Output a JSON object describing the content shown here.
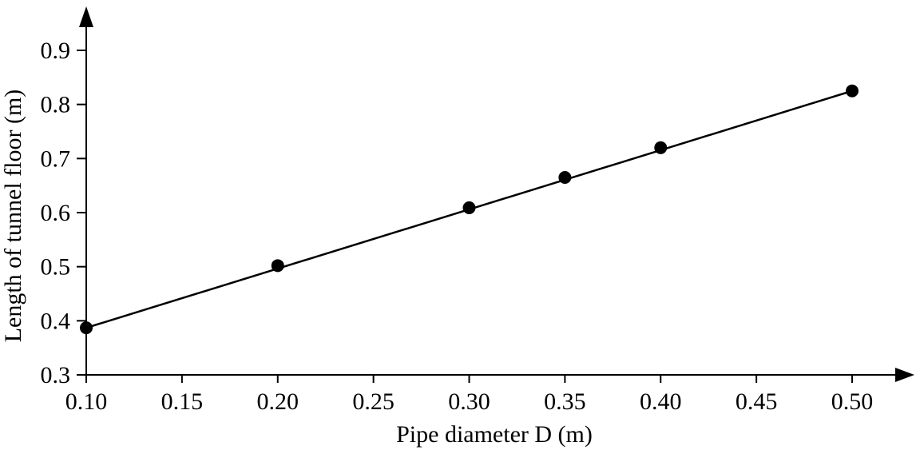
{
  "chart_data": {
    "type": "scatter",
    "xlabel": "Pipe diameter D (m)",
    "ylabel": "Length of tunnel floor (m)",
    "xlim": [
      0.1,
      0.5
    ],
    "ylim": [
      0.3,
      0.9
    ],
    "x_ticks": [
      "0.10",
      "0.15",
      "0.20",
      "0.25",
      "0.30",
      "0.35",
      "0.40",
      "0.45",
      "0.50"
    ],
    "y_ticks": [
      "0.3",
      "0.4",
      "0.5",
      "0.6",
      "0.7",
      "0.8",
      "0.9"
    ],
    "grid": false,
    "points": [
      {
        "x": 0.1,
        "y": 0.387
      },
      {
        "x": 0.2,
        "y": 0.502
      },
      {
        "x": 0.3,
        "y": 0.609
      },
      {
        "x": 0.35,
        "y": 0.665
      },
      {
        "x": 0.4,
        "y": 0.72
      },
      {
        "x": 0.5,
        "y": 0.825
      }
    ],
    "fit_line": {
      "x": [
        0.1,
        0.5
      ],
      "y": [
        0.387,
        0.825
      ]
    },
    "colors": {
      "line": "#000000",
      "marker": "#000000"
    }
  }
}
